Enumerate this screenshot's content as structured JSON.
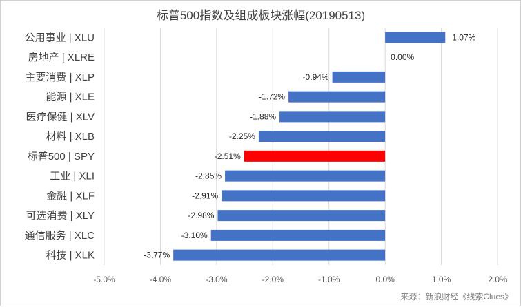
{
  "chart_data": {
    "type": "bar",
    "orientation": "horizontal",
    "title": "标普500指数及组成板块涨幅(20190513)",
    "categories": [
      "公用事业 | XLU",
      "房地产 | XLRE",
      "主要消费 | XLP",
      "能源 | XLE",
      "医疗保健 | XLV",
      "材料 | XLB",
      "标普500 | SPY",
      "工业 | XLI",
      "金融 | XLF",
      "可选消费 | XLY",
      "通信服务 | XLC",
      "科技 | XLK"
    ],
    "values": [
      1.07,
      0.0,
      -0.94,
      -1.72,
      -1.88,
      -2.25,
      -2.51,
      -2.85,
      -2.91,
      -2.98,
      -3.1,
      -3.77
    ],
    "value_labels": [
      "1.07%",
      "0.00%",
      "-0.94%",
      "-1.72%",
      "-1.88%",
      "-2.25%",
      "-2.51%",
      "-2.85%",
      "-2.91%",
      "-2.98%",
      "-3.10%",
      "-3.77%"
    ],
    "bar_colors": [
      "#4472c4",
      "#4472c4",
      "#4472c4",
      "#4472c4",
      "#4472c4",
      "#4472c4",
      "#ff0000",
      "#4472c4",
      "#4472c4",
      "#4472c4",
      "#4472c4",
      "#4472c4"
    ],
    "xlim": [
      -5.0,
      2.0
    ],
    "xticks": [
      -5.0,
      -4.0,
      -3.0,
      -2.0,
      -1.0,
      0.0,
      1.0,
      2.0
    ],
    "xtick_labels": [
      "-5.0%",
      "-4.0%",
      "-3.0%",
      "-2.0%",
      "-1.0%",
      "0.0%",
      "1.0%",
      "2.0%"
    ],
    "grid": "vertical",
    "legend": "none",
    "xlabel": "",
    "ylabel": "",
    "source": "来源：新浪财经《线索Clues》"
  },
  "colors": {
    "default_bar": "#4472c4",
    "highlight_bar": "#ff0000",
    "grid": "#d9d9d9"
  }
}
